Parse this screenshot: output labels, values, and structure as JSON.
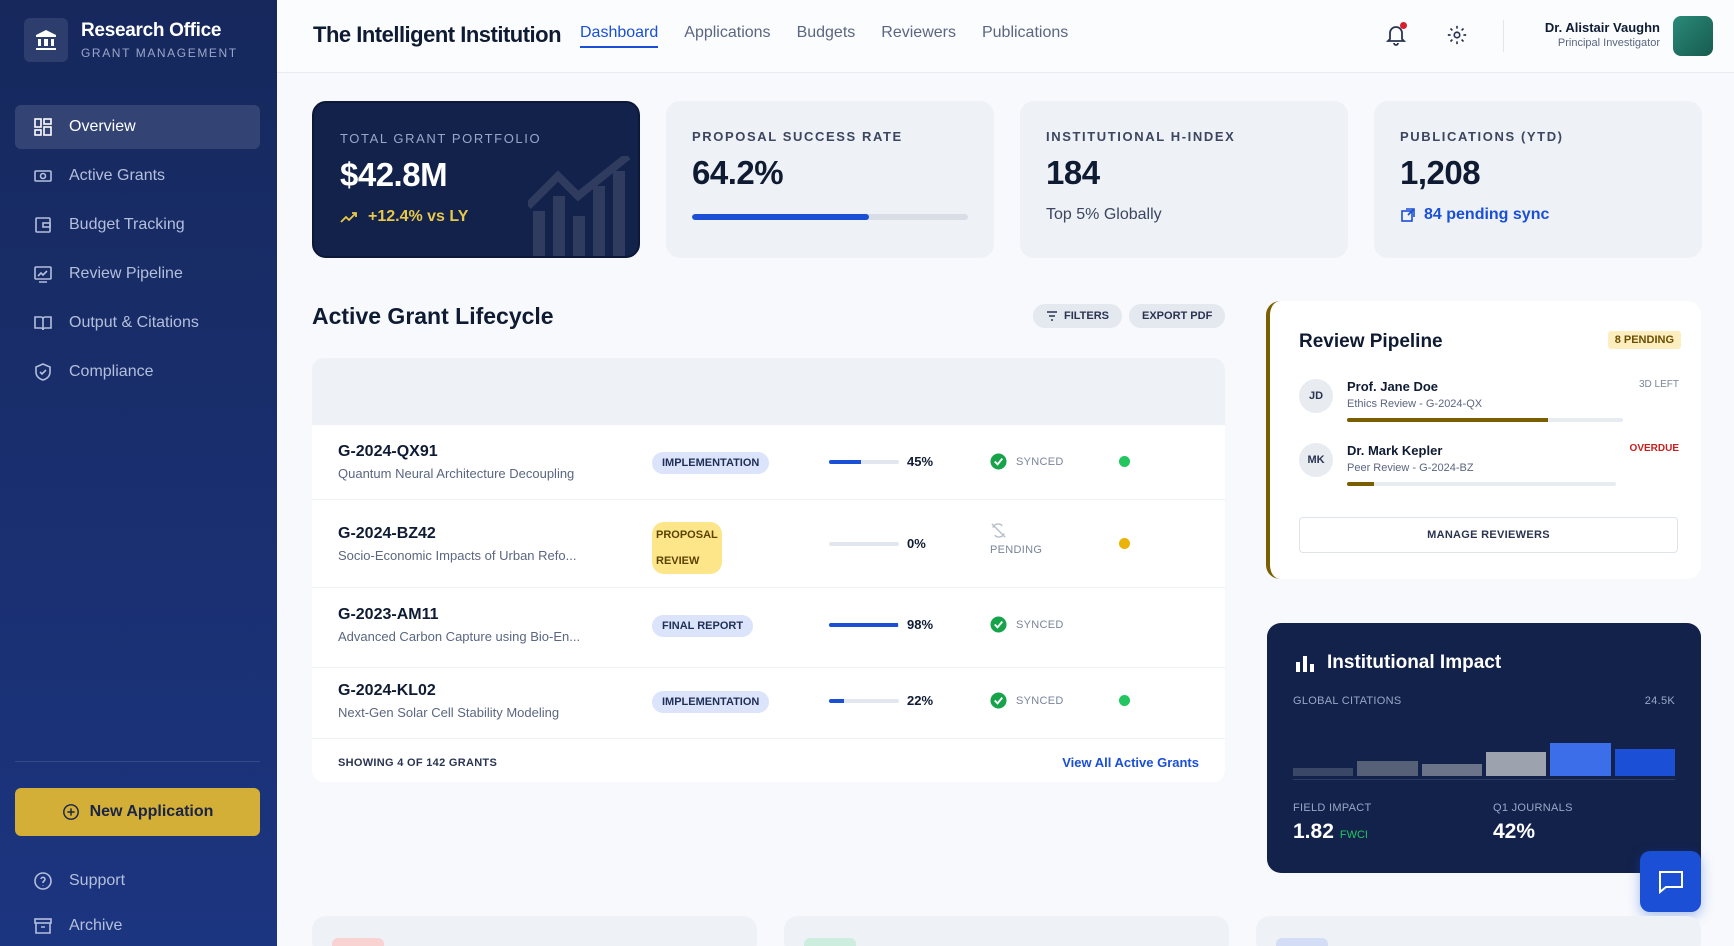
{
  "sidebar": {
    "brand_title": "Research Office",
    "brand_subtitle": "GRANT MANAGEMENT",
    "items": [
      {
        "label": "Overview",
        "icon": "dashboard-icon",
        "active": true
      },
      {
        "label": "Active Grants",
        "icon": "money-icon"
      },
      {
        "label": "Budget Tracking",
        "icon": "wallet-icon"
      },
      {
        "label": "Review Pipeline",
        "icon": "review-icon"
      },
      {
        "label": "Output & Citations",
        "icon": "book-icon"
      },
      {
        "label": "Compliance",
        "icon": "shield-icon"
      }
    ],
    "new_application": "New Application",
    "support": "Support",
    "archive": "Archive"
  },
  "header": {
    "institution": "The Intelligent Institution",
    "tabs": [
      "Dashboard",
      "Applications",
      "Budgets",
      "Reviewers",
      "Publications"
    ],
    "active_tab": "Dashboard",
    "user_name": "Dr. Alistair Vaughn",
    "user_role": "Principal Investigator"
  },
  "stats": [
    {
      "label": "TOTAL GRANT PORTFOLIO",
      "value": "$42.8M",
      "sub": "+12.4% vs LY"
    },
    {
      "label": "PROPOSAL SUCCESS RATE",
      "value": "64.2%",
      "progress": 0.642
    },
    {
      "label": "INSTITUTIONAL H-INDEX",
      "value": "184",
      "sub": "Top 5% Globally"
    },
    {
      "label": "PUBLICATIONS (YTD)",
      "value": "1,208",
      "sub": "84 pending sync"
    }
  ],
  "lifecycle": {
    "title": "Active Grant Lifecycle",
    "filters": "FILTERS",
    "export": "EXPORT PDF",
    "rows": [
      {
        "id": "G-2024-QX91",
        "title": "Quantum Neural Architecture Decoupling",
        "phase": "IMPLEMENTATION",
        "progress": 0.45,
        "progress_label": "45%",
        "sync": "SYNCED",
        "status_color": "#22c55e"
      },
      {
        "id": "G-2024-BZ42",
        "title": "Socio-Economic Impacts of Urban Refo...",
        "phase": "PROPOSAL REVIEW",
        "progress": 0,
        "progress_label": "0%",
        "sync": "PENDING",
        "status_color": "#eab308"
      },
      {
        "id": "G-2023-AM11",
        "title": "Advanced Carbon Capture using Bio-En...",
        "phase": "FINAL REPORT",
        "progress": 0.98,
        "progress_label": "98%",
        "sync": "SYNCED",
        "status_color": ""
      },
      {
        "id": "G-2024-KL02",
        "title": "Next-Gen Solar Cell Stability Modeling",
        "phase": "IMPLEMENTATION",
        "progress": 0.22,
        "progress_label": "22%",
        "sync": "SYNCED",
        "status_color": "#22c55e"
      }
    ],
    "footer_count": "SHOWING 4 OF 142 GRANTS",
    "view_all": "View All Active Grants"
  },
  "review": {
    "title": "Review Pipeline",
    "badge": "8 PENDING",
    "reviewers": [
      {
        "initials": "JD",
        "name": "Prof. Jane Doe",
        "detail": "Ethics Review - G-2024-QX",
        "status": "3D LEFT",
        "progress": 0.73
      },
      {
        "initials": "MK",
        "name": "Dr. Mark Kepler",
        "detail": "Peer Review - G-2024-BZ",
        "status": "OVERDUE",
        "progress": 0.1
      }
    ],
    "manage": "MANAGE REVIEWERS"
  },
  "impact": {
    "title": "Institutional Impact",
    "citations_label": "GLOBAL CITATIONS",
    "citations_value": "24.5K",
    "bars": [
      0.13,
      0.25,
      0.2,
      0.4,
      0.55,
      0.45
    ],
    "field_label": "FIELD IMPACT",
    "field_value": "1.82",
    "field_unit": "FWCI",
    "journals_label": "Q1 JOURNALS",
    "journals_value": "42%"
  },
  "colors": {
    "primary": "#1a4fd6",
    "navy": "#13224a",
    "gold": "#d4af37"
  }
}
